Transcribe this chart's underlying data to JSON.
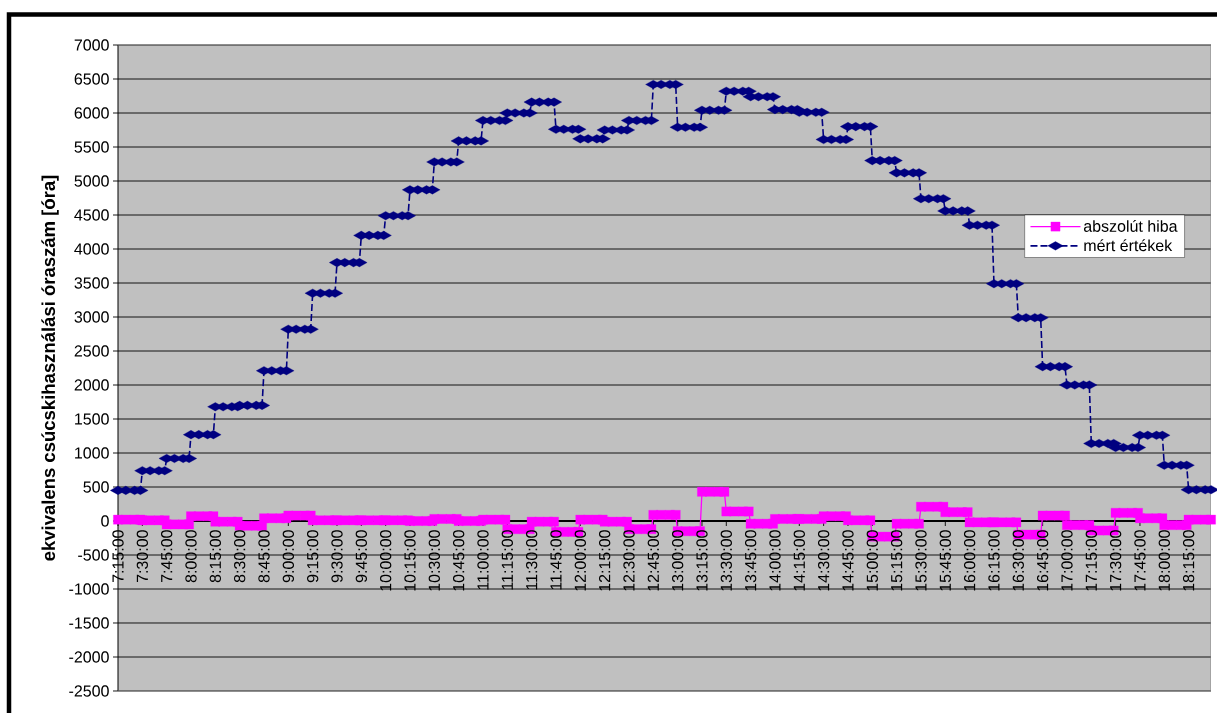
{
  "chart_data": {
    "type": "line",
    "ylabel": "ekvivalens csúcskihasználási óraszám [óra]",
    "x": [
      7.25,
      7.33,
      7.42,
      7.48,
      7.5,
      7.58,
      7.67,
      7.73,
      7.75,
      7.83,
      7.92,
      7.98,
      8,
      8.08,
      8.17,
      8.23,
      8.25,
      8.33,
      8.42,
      8.48,
      8.5,
      8.58,
      8.67,
      8.73,
      8.75,
      8.83,
      8.92,
      8.98,
      9,
      9.08,
      9.17,
      9.23,
      9.25,
      9.33,
      9.42,
      9.48,
      9.5,
      9.58,
      9.67,
      9.73,
      9.75,
      9.83,
      9.92,
      9.98,
      10,
      10.08,
      10.17,
      10.23,
      10.25,
      10.33,
      10.42,
      10.48,
      10.5,
      10.58,
      10.67,
      10.73,
      10.75,
      10.83,
      10.92,
      10.98,
      11,
      11.08,
      11.17,
      11.23,
      11.25,
      11.33,
      11.42,
      11.48,
      11.5,
      11.58,
      11.67,
      11.73,
      11.75,
      11.83,
      11.92,
      11.98,
      12,
      12.08,
      12.17,
      12.23,
      12.25,
      12.33,
      12.42,
      12.48,
      12.5,
      12.58,
      12.67,
      12.73,
      12.75,
      12.83,
      12.92,
      12.98,
      13,
      13.08,
      13.17,
      13.23,
      13.25,
      13.33,
      13.42,
      13.48,
      13.5,
      13.58,
      13.67,
      13.73,
      13.75,
      13.83,
      13.92,
      13.98,
      14,
      14.08,
      14.17,
      14.23,
      14.25,
      14.33,
      14.42,
      14.48,
      14.5,
      14.58,
      14.67,
      14.73,
      14.75,
      14.83,
      14.92,
      14.98,
      15,
      15.08,
      15.17,
      15.23,
      15.25,
      15.33,
      15.42,
      15.48,
      15.5,
      15.58,
      15.67,
      15.73,
      15.75,
      15.83,
      15.92,
      15.98,
      16,
      16.08,
      16.17,
      16.23,
      16.25,
      16.33,
      16.42,
      16.48,
      16.5,
      16.58,
      16.67,
      16.73,
      16.75,
      16.83,
      16.92,
      16.98,
      17,
      17.08,
      17.17,
      17.23,
      17.25,
      17.33,
      17.42,
      17.48,
      17.5,
      17.58,
      17.67,
      17.73,
      17.75,
      17.83,
      17.92,
      17.98,
      18,
      18.08,
      18.17,
      18.23,
      18.25,
      18.33,
      18.42,
      18.48
    ],
    "xlim": [
      7.25,
      18.48
    ],
    "xticks": [
      {
        "value": 7.25,
        "label": "7:15:00"
      },
      {
        "value": 7.5,
        "label": "7:30:00"
      },
      {
        "value": 7.75,
        "label": "7:45:00"
      },
      {
        "value": 8,
        "label": "8:00:00"
      },
      {
        "value": 8.25,
        "label": "8:15:00"
      },
      {
        "value": 8.5,
        "label": "8:30:00"
      },
      {
        "value": 8.75,
        "label": "8:45:00"
      },
      {
        "value": 9,
        "label": "9:00:00"
      },
      {
        "value": 9.25,
        "label": "9:15:00"
      },
      {
        "value": 9.5,
        "label": "9:30:00"
      },
      {
        "value": 9.75,
        "label": "9:45:00"
      },
      {
        "value": 10,
        "label": "10:00:00"
      },
      {
        "value": 10.25,
        "label": "10:15:00"
      },
      {
        "value": 10.5,
        "label": "10:30:00"
      },
      {
        "value": 10.75,
        "label": "10:45:00"
      },
      {
        "value": 11,
        "label": "11:00:00"
      },
      {
        "value": 11.25,
        "label": "11:15:00"
      },
      {
        "value": 11.5,
        "label": "11:30:00"
      },
      {
        "value": 11.75,
        "label": "11:45:00"
      },
      {
        "value": 12,
        "label": "12:00:00"
      },
      {
        "value": 12.25,
        "label": "12:15:00"
      },
      {
        "value": 12.5,
        "label": "12:30:00"
      },
      {
        "value": 12.75,
        "label": "12:45:00"
      },
      {
        "value": 13,
        "label": "13:00:00"
      },
      {
        "value": 13.25,
        "label": "13:15:00"
      },
      {
        "value": 13.5,
        "label": "13:30:00"
      },
      {
        "value": 13.75,
        "label": "13:45:00"
      },
      {
        "value": 14,
        "label": "14:00:00"
      },
      {
        "value": 14.25,
        "label": "14:15:00"
      },
      {
        "value": 14.5,
        "label": "14:30:00"
      },
      {
        "value": 14.75,
        "label": "14:45:00"
      },
      {
        "value": 15,
        "label": "15:00:00"
      },
      {
        "value": 15.25,
        "label": "15:15:00"
      },
      {
        "value": 15.5,
        "label": "15:30:00"
      },
      {
        "value": 15.75,
        "label": "15:45:00"
      },
      {
        "value": 16,
        "label": "16:00:00"
      },
      {
        "value": 16.25,
        "label": "16:15:00"
      },
      {
        "value": 16.5,
        "label": "16:30:00"
      },
      {
        "value": 16.75,
        "label": "16:45:00"
      },
      {
        "value": 17,
        "label": "17:00:00"
      },
      {
        "value": 17.25,
        "label": "17:15:00"
      },
      {
        "value": 17.5,
        "label": "17:30:00"
      },
      {
        "value": 17.75,
        "label": "17:45:00"
      },
      {
        "value": 18,
        "label": "18:00:00"
      },
      {
        "value": 18.25,
        "label": "18:15:00"
      }
    ],
    "ylim": [
      -2500,
      7000
    ],
    "yticks": [
      -2500,
      -2000,
      -1500,
      -1000,
      -500,
      0,
      500,
      1000,
      1500,
      2000,
      2500,
      3000,
      3500,
      4000,
      4500,
      5000,
      5500,
      6000,
      6500,
      7000
    ],
    "grid": "y",
    "legend": "right",
    "series": [
      {
        "name": "abszolút hiba",
        "color": "#ff00ff",
        "marker": "square",
        "line_style": "solid",
        "values": [
          20,
          20,
          20,
          20,
          10,
          10,
          10,
          10,
          -50,
          -50,
          -50,
          -50,
          70,
          70,
          70,
          70,
          -10,
          -10,
          -10,
          -10,
          -70,
          -70,
          -70,
          -70,
          40,
          40,
          40,
          40,
          80,
          80,
          80,
          80,
          10,
          10,
          10,
          10,
          10,
          10,
          10,
          10,
          10,
          10,
          10,
          10,
          10,
          10,
          10,
          10,
          0,
          0,
          0,
          0,
          30,
          30,
          30,
          30,
          0,
          0,
          0,
          0,
          20,
          20,
          20,
          20,
          -120,
          -120,
          -120,
          -120,
          -10,
          -10,
          -10,
          -10,
          -160,
          -160,
          -160,
          -160,
          20,
          20,
          20,
          20,
          -10,
          -10,
          -10,
          -10,
          -120,
          -120,
          -120,
          -120,
          90,
          90,
          90,
          90,
          -150,
          -150,
          -150,
          -150,
          430,
          430,
          430,
          430,
          140,
          140,
          140,
          140,
          -40,
          -40,
          -40,
          -40,
          30,
          30,
          30,
          30,
          30,
          30,
          30,
          30,
          70,
          70,
          70,
          70,
          10,
          10,
          10,
          10,
          -230,
          -230,
          -230,
          -230,
          -40,
          -40,
          -40,
          -40,
          210,
          210,
          210,
          210,
          130,
          130,
          130,
          130,
          -20,
          -20,
          -20,
          -20,
          -20,
          -20,
          -20,
          -20,
          -200,
          -200,
          -200,
          -200,
          80,
          80,
          80,
          80,
          -60,
          -60,
          -60,
          -60,
          -140,
          -140,
          -140,
          -140,
          120,
          120,
          120,
          120,
          40,
          40,
          40,
          40,
          -60,
          -60,
          -60,
          -60,
          20,
          20,
          20,
          20
        ]
      },
      {
        "name": "mért értékek",
        "color": "#000080",
        "marker": "diamond",
        "line_style": "dashed",
        "values": [
          450,
          450,
          450,
          450,
          740,
          740,
          740,
          740,
          920,
          920,
          920,
          920,
          1270,
          1270,
          1270,
          1270,
          1680,
          1680,
          1680,
          1680,
          1700,
          1700,
          1700,
          1700,
          2210,
          2210,
          2210,
          2210,
          2820,
          2820,
          2820,
          2820,
          3350,
          3350,
          3350,
          3350,
          3800,
          3800,
          3800,
          3800,
          4200,
          4200,
          4200,
          4200,
          4490,
          4490,
          4490,
          4490,
          4870,
          4870,
          4870,
          4870,
          5280,
          5280,
          5280,
          5280,
          5590,
          5590,
          5590,
          5590,
          5890,
          5890,
          5890,
          5890,
          6000,
          6000,
          6000,
          6000,
          6160,
          6160,
          6160,
          6160,
          5760,
          5760,
          5760,
          5760,
          5620,
          5620,
          5620,
          5620,
          5750,
          5750,
          5750,
          5750,
          5890,
          5890,
          5890,
          5890,
          6420,
          6420,
          6420,
          6420,
          5790,
          5790,
          5790,
          5790,
          6040,
          6040,
          6040,
          6040,
          6320,
          6320,
          6320,
          6320,
          6240,
          6240,
          6240,
          6240,
          6050,
          6050,
          6050,
          6050,
          6010,
          6010,
          6010,
          6010,
          5610,
          5610,
          5610,
          5610,
          5800,
          5800,
          5800,
          5800,
          5300,
          5300,
          5300,
          5300,
          5120,
          5120,
          5120,
          5120,
          4740,
          4740,
          4740,
          4740,
          4560,
          4560,
          4560,
          4560,
          4350,
          4350,
          4350,
          4350,
          3490,
          3490,
          3490,
          3490,
          2990,
          2990,
          2990,
          2990,
          2270,
          2270,
          2270,
          2270,
          2000,
          2000,
          2000,
          2000,
          1140,
          1140,
          1140,
          1140,
          1080,
          1080,
          1080,
          1080,
          1260,
          1260,
          1260,
          1260,
          820,
          820,
          820,
          820,
          460,
          460,
          460,
          460
        ]
      }
    ]
  }
}
